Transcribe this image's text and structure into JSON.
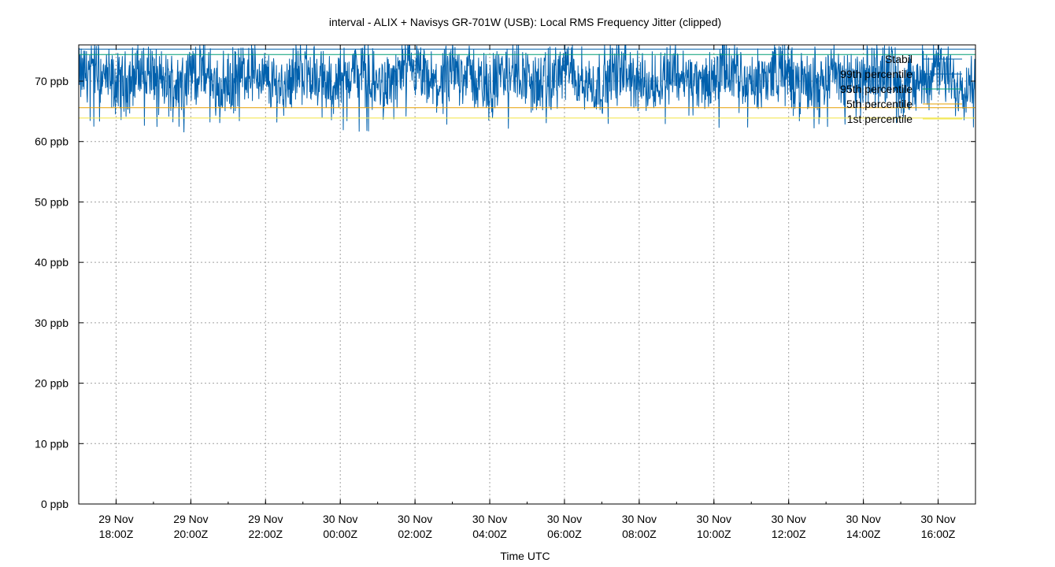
{
  "chart_data": {
    "type": "line",
    "title": "interval - ALIX + Navisys GR-701W (USB): Local RMS Frequency Jitter (clipped)",
    "xlabel": "Time UTC",
    "ylabel": "",
    "ylim": [
      0,
      76
    ],
    "xlim": [
      "2015-11-29T17:00Z",
      "2015-11-30T17:00Z"
    ],
    "y_ticks": [
      {
        "value": 0,
        "label": "0 ppb"
      },
      {
        "value": 10,
        "label": "10 ppb"
      },
      {
        "value": 20,
        "label": "20 ppb"
      },
      {
        "value": 30,
        "label": "30 ppb"
      },
      {
        "value": 40,
        "label": "40 ppb"
      },
      {
        "value": 50,
        "label": "50 ppb"
      },
      {
        "value": 60,
        "label": "60 ppb"
      },
      {
        "value": 70,
        "label": "70 ppb"
      }
    ],
    "x_ticks": [
      {
        "value": "2015-11-29T18:00Z",
        "line1": "29 Nov",
        "line2": "18:00Z"
      },
      {
        "value": "2015-11-29T20:00Z",
        "line1": "29 Nov",
        "line2": "20:00Z"
      },
      {
        "value": "2015-11-29T22:00Z",
        "line1": "29 Nov",
        "line2": "22:00Z"
      },
      {
        "value": "2015-11-30T00:00Z",
        "line1": "30 Nov",
        "line2": "00:00Z"
      },
      {
        "value": "2015-11-30T02:00Z",
        "line1": "30 Nov",
        "line2": "02:00Z"
      },
      {
        "value": "2015-11-30T04:00Z",
        "line1": "30 Nov",
        "line2": "04:00Z"
      },
      {
        "value": "2015-11-30T06:00Z",
        "line1": "30 Nov",
        "line2": "06:00Z"
      },
      {
        "value": "2015-11-30T08:00Z",
        "line1": "30 Nov",
        "line2": "08:00Z"
      },
      {
        "value": "2015-11-30T10:00Z",
        "line1": "30 Nov",
        "line2": "10:00Z"
      },
      {
        "value": "2015-11-30T12:00Z",
        "line1": "30 Nov",
        "line2": "12:00Z"
      },
      {
        "value": "2015-11-30T14:00Z",
        "line1": "30 Nov",
        "line2": "14:00Z"
      },
      {
        "value": "2015-11-30T16:00Z",
        "line1": "30 Nov",
        "line2": "16:00Z"
      }
    ],
    "grid": true,
    "legend_position": "top-right",
    "series": [
      {
        "name": "Stabil",
        "color": "#0060ad",
        "kind": "jitter",
        "center": 70.5,
        "min": 61.5,
        "max": 76
      },
      {
        "name": "99th percentile",
        "color": "#0060ad",
        "kind": "constant",
        "value": 75.3
      },
      {
        "name": "95th percentile",
        "color": "#009e73",
        "kind": "constant",
        "value": 74.4
      },
      {
        "name": "5th percentile",
        "color": "#e69f00",
        "kind": "constant",
        "value": 65.6
      },
      {
        "name": "1st percentile",
        "color": "#f0e442",
        "kind": "constant",
        "value": 63.9
      }
    ]
  }
}
